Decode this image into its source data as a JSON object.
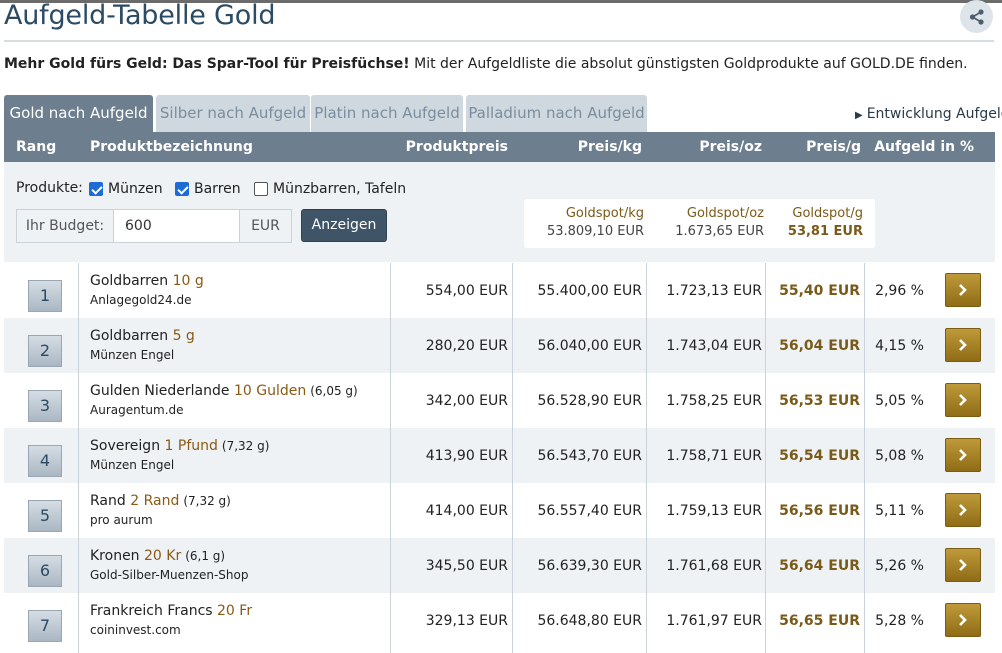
{
  "page": {
    "title": "Aufgeld-Tabelle Gold",
    "intro_bold": "Mehr Gold fürs Geld: Das Spar-Tool für Preisfüchse!",
    "intro_rest": " Mit der Aufgeldliste die absolut günstigsten Goldprodukte auf GOLD.DE finden."
  },
  "icons": {
    "share": "share-icon",
    "chevron": "chevron-right-icon",
    "triangle": "triangle-right-icon"
  },
  "tabs": [
    {
      "label": "Gold nach Aufgeld",
      "active": true
    },
    {
      "label": "Silber nach Aufgeld",
      "active": false
    },
    {
      "label": "Platin nach Aufgeld",
      "active": false
    },
    {
      "label": "Palladium nach Aufgeld",
      "active": false
    }
  ],
  "development_link": "Entwicklung Aufgeld",
  "columns": {
    "rank": "Rang",
    "product": "Produktbezeichnung",
    "price": "Produktpreis",
    "per_kg": "Preis/kg",
    "per_oz": "Preis/oz",
    "per_g": "Preis/g",
    "premium": "Aufgeld in %"
  },
  "filter": {
    "products_label": "Produkte:",
    "options": [
      {
        "label": "Münzen",
        "checked": true
      },
      {
        "label": "Barren",
        "checked": true
      },
      {
        "label": "Münzbarren, Tafeln",
        "checked": false
      }
    ],
    "budget_label": "Ihr Budget:",
    "budget_value": "600",
    "currency": "EUR",
    "show_button": "Anzeigen"
  },
  "spot": {
    "kg_label": "Goldspot/kg",
    "kg_value": "53.809,10 EUR",
    "oz_label": "Goldspot/oz",
    "oz_value": "1.673,65 EUR",
    "g_label": "Goldspot/g",
    "g_value": "53,81 EUR"
  },
  "rows": [
    {
      "rank": "1",
      "name": "Goldbarren",
      "weight": "10 g",
      "grams": "",
      "shop": "Anlagegold24.de",
      "price": "554,00 EUR",
      "per_kg": "55.400,00 EUR",
      "per_oz": "1.723,13 EUR",
      "per_g": "55,40 EUR",
      "premium": "2,96 %"
    },
    {
      "rank": "2",
      "name": "Goldbarren",
      "weight": "5 g",
      "grams": "",
      "shop": "Münzen Engel",
      "price": "280,20 EUR",
      "per_kg": "56.040,00 EUR",
      "per_oz": "1.743,04 EUR",
      "per_g": "56,04 EUR",
      "premium": "4,15 %"
    },
    {
      "rank": "3",
      "name": "Gulden Niederlande",
      "weight": "10 Gulden",
      "grams": "(6,05 g)",
      "shop": "Auragentum.de",
      "price": "342,00 EUR",
      "per_kg": "56.528,90 EUR",
      "per_oz": "1.758,25 EUR",
      "per_g": "56,53 EUR",
      "premium": "5,05 %"
    },
    {
      "rank": "4",
      "name": "Sovereign",
      "weight": "1 Pfund",
      "grams": "(7,32 g)",
      "shop": "Münzen Engel",
      "price": "413,90 EUR",
      "per_kg": "56.543,70 EUR",
      "per_oz": "1.758,71 EUR",
      "per_g": "56,54 EUR",
      "premium": "5,08 %"
    },
    {
      "rank": "5",
      "name": "Rand",
      "weight": "2 Rand",
      "grams": "(7,32 g)",
      "shop": "pro aurum",
      "price": "414,00 EUR",
      "per_kg": "56.557,40 EUR",
      "per_oz": "1.759,13 EUR",
      "per_g": "56,56 EUR",
      "premium": "5,11 %"
    },
    {
      "rank": "6",
      "name": "Kronen",
      "weight": "20 Kr",
      "grams": "(6,1 g)",
      "shop": "Gold-Silber-Muenzen-Shop",
      "price": "345,50 EUR",
      "per_kg": "56.639,30 EUR",
      "per_oz": "1.761,68 EUR",
      "per_g": "56,64 EUR",
      "premium": "5,26 %"
    },
    {
      "rank": "7",
      "name": "Frankreich Francs",
      "weight": "20 Fr",
      "grams": "",
      "shop": "coininvest.com",
      "price": "329,13 EUR",
      "per_kg": "56.648,80 EUR",
      "per_oz": "1.761,97 EUR",
      "per_g": "56,65 EUR",
      "premium": "5,28 %"
    }
  ]
}
